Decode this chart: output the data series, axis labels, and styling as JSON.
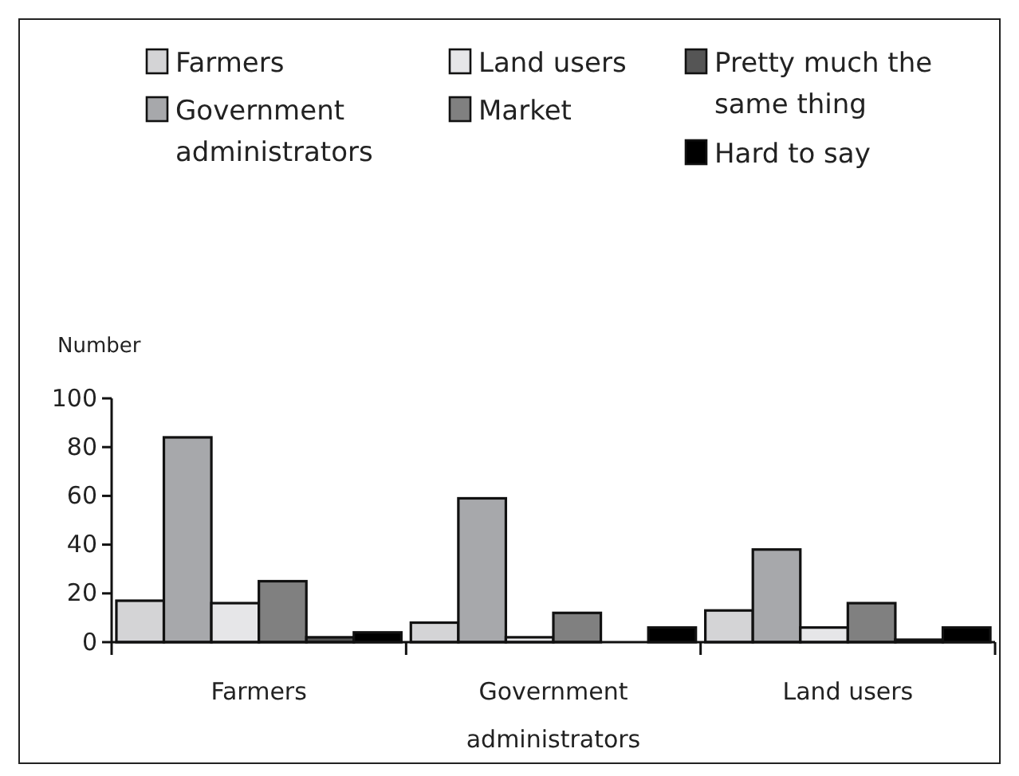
{
  "chart_data": {
    "type": "bar",
    "ylabel": "Number",
    "categories": [
      "Farmers",
      "Government administrators",
      "Land users"
    ],
    "series": [
      {
        "name": "Farmers",
        "color": "#d4d4d6",
        "values": [
          17,
          8,
          13
        ]
      },
      {
        "name": "Government administrators",
        "color": "#a7a8ab",
        "values": [
          84,
          59,
          38
        ]
      },
      {
        "name": "Land users",
        "color": "#e6e6e8",
        "values": [
          16,
          2,
          6
        ]
      },
      {
        "name": "Market",
        "color": "#808080",
        "values": [
          25,
          12,
          16
        ]
      },
      {
        "name": "Pretty much the same thing",
        "color": "#555555",
        "values": [
          2,
          0,
          1
        ]
      },
      {
        "name": "Hard to say",
        "color": "#000000",
        "values": [
          4,
          6,
          6
        ]
      }
    ],
    "ylim": [
      0,
      100
    ],
    "yticks": [
      0,
      20,
      40,
      60,
      80,
      100
    ],
    "grid": false,
    "legend": "top"
  }
}
